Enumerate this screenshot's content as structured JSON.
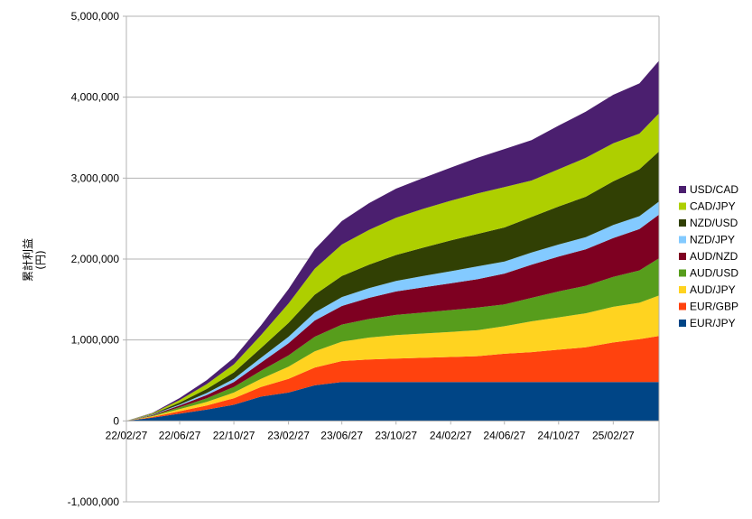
{
  "chart_data": {
    "type": "area",
    "stacked": true,
    "ylabel": "累計利益",
    "ylabel_unit": "(円)",
    "ylim": [
      -1000000,
      5000000
    ],
    "yticks": [
      -1000000,
      0,
      1000000,
      2000000,
      3000000,
      4000000,
      5000000
    ],
    "ytick_labels": [
      "-1,000,000",
      "0",
      "1,000,000",
      "2,000,000",
      "3,000,000",
      "4,000,000",
      "5,000,000"
    ],
    "x_dates": [
      "2022-02-27",
      "2022-04-27",
      "2022-06-27",
      "2022-08-27",
      "2022-10-27",
      "2022-12-27",
      "2023-02-27",
      "2023-04-27",
      "2023-06-27",
      "2023-08-27",
      "2023-10-27",
      "2023-12-27",
      "2024-02-27",
      "2024-04-27",
      "2024-06-27",
      "2024-08-27",
      "2024-10-27",
      "2024-12-27",
      "2025-02-27",
      "2025-04-27",
      "2025-06-10"
    ],
    "xlim": [
      "2022-02-27",
      "2025-06-10"
    ],
    "xtick_dates": [
      "2022-02-27",
      "2022-06-27",
      "2022-10-27",
      "2023-02-27",
      "2023-06-27",
      "2023-10-27",
      "2024-02-27",
      "2024-06-27",
      "2024-10-27",
      "2025-02-27"
    ],
    "xtick_labels": [
      "22/02/27",
      "22/06/27",
      "22/10/27",
      "23/02/27",
      "23/06/27",
      "23/10/27",
      "24/02/27",
      "24/06/27",
      "24/10/27",
      "25/02/27"
    ],
    "grid": "horizontal",
    "legend_position": "right",
    "series": [
      {
        "name": "EUR/JPY",
        "color": "#004586",
        "values": [
          0,
          40000,
          90000,
          140000,
          200000,
          300000,
          350000,
          440000,
          480000,
          480000,
          480000,
          480000,
          480000,
          480000,
          480000,
          480000,
          480000,
          480000,
          480000,
          480000,
          480000
        ]
      },
      {
        "name": "EUR/GBP",
        "color": "#ff420e",
        "values": [
          0,
          10000,
          30000,
          50000,
          80000,
          120000,
          170000,
          220000,
          260000,
          280000,
          290000,
          300000,
          310000,
          320000,
          350000,
          370000,
          400000,
          430000,
          490000,
          530000,
          570000
        ]
      },
      {
        "name": "AUD/JPY",
        "color": "#ffd320",
        "values": [
          0,
          8000,
          25000,
          45000,
          70000,
          100000,
          150000,
          200000,
          240000,
          270000,
          290000,
          300000,
          310000,
          320000,
          340000,
          380000,
          400000,
          420000,
          440000,
          450000,
          500000
        ]
      },
      {
        "name": "AUD/USD",
        "color": "#579d1c",
        "values": [
          0,
          8000,
          25000,
          45000,
          70000,
          100000,
          140000,
          180000,
          210000,
          230000,
          250000,
          260000,
          270000,
          280000,
          270000,
          290000,
          320000,
          340000,
          370000,
          400000,
          460000
        ]
      },
      {
        "name": "AUD/NZD",
        "color": "#7e0021",
        "values": [
          0,
          8000,
          20000,
          40000,
          60000,
          100000,
          150000,
          200000,
          230000,
          260000,
          290000,
          310000,
          330000,
          350000,
          380000,
          410000,
          430000,
          450000,
          480000,
          510000,
          540000
        ]
      },
      {
        "name": "NZD/JPY",
        "color": "#83caff",
        "values": [
          0,
          4000,
          12000,
          25000,
          40000,
          60000,
          80000,
          100000,
          110000,
          120000,
          130000,
          140000,
          150000,
          160000,
          150000,
          150000,
          150000,
          150000,
          160000,
          160000,
          160000
        ]
      },
      {
        "name": "NZD/USD",
        "color": "#314004",
        "values": [
          0,
          8000,
          25000,
          50000,
          80000,
          120000,
          170000,
          220000,
          260000,
          290000,
          320000,
          350000,
          380000,
          400000,
          420000,
          440000,
          470000,
          500000,
          540000,
          580000,
          620000
        ]
      },
      {
        "name": "CAD/JPY",
        "color": "#aecf00",
        "values": [
          0,
          8000,
          30000,
          60000,
          100000,
          160000,
          240000,
          320000,
          390000,
          430000,
          460000,
          480000,
          490000,
          500000,
          500000,
          450000,
          460000,
          480000,
          470000,
          440000,
          470000
        ]
      },
      {
        "name": "USD/CAD",
        "color": "#4b1f6f",
        "values": [
          0,
          6000,
          25000,
          50000,
          80000,
          120000,
          180000,
          240000,
          290000,
          330000,
          360000,
          380000,
          410000,
          440000,
          470000,
          500000,
          540000,
          570000,
          600000,
          620000,
          650000
        ]
      }
    ]
  }
}
